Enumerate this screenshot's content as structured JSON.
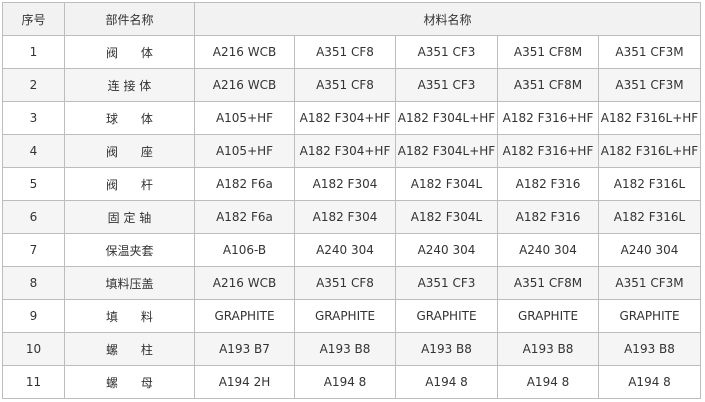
{
  "headers": {
    "no": "序号",
    "part": "部件名称",
    "material": "材料名称"
  },
  "rows": [
    {
      "no": "1",
      "part": "阀      体",
      "m": [
        "A216 WCB",
        "A351 CF8",
        "A351 CF3",
        "A351 CF8M",
        "A351 CF3M"
      ]
    },
    {
      "no": "2",
      "part": "连 接 体",
      "m": [
        "A216 WCB",
        "A351 CF8",
        "A351 CF3",
        "A351 CF8M",
        "A351 CF3M"
      ]
    },
    {
      "no": "3",
      "part": "球      体",
      "m": [
        "A105+HF",
        "A182 F304+HF",
        "A182 F304L+HF",
        "A182 F316+HF",
        "A182 F316L+HF"
      ]
    },
    {
      "no": "4",
      "part": "阀      座",
      "m": [
        "A105+HF",
        "A182 F304+HF",
        "A182 F304L+HF",
        "A182 F316+HF",
        "A182 F316L+HF"
      ]
    },
    {
      "no": "5",
      "part": "阀      杆",
      "m": [
        "A182 F6a",
        "A182 F304",
        "A182 F304L",
        "A182 F316",
        "A182 F316L"
      ]
    },
    {
      "no": "6",
      "part": "固 定 轴",
      "m": [
        "A182 F6a",
        "A182 F304",
        "A182 F304L",
        "A182 F316",
        "A182 F316L"
      ]
    },
    {
      "no": "7",
      "part": "保温夹套",
      "m": [
        "A106-B",
        "A240 304",
        "A240 304",
        "A240 304",
        "A240 304"
      ]
    },
    {
      "no": "8",
      "part": "填料压盖",
      "m": [
        "A216 WCB",
        "A351 CF8",
        "A351 CF3",
        "A351 CF8M",
        "A351 CF3M"
      ]
    },
    {
      "no": "9",
      "part": "填      料",
      "m": [
        "GRAPHITE",
        "GRAPHITE",
        "GRAPHITE",
        "GRAPHITE",
        "GRAPHITE"
      ]
    },
    {
      "no": "10",
      "part": "螺      柱",
      "m": [
        "A193 B7",
        "A193 B8",
        "A193 B8",
        "A193 B8",
        "A193 B8"
      ]
    },
    {
      "no": "11",
      "part": "螺      母",
      "m": [
        "A194 2H",
        "A194 8",
        "A194 8",
        "A194 8",
        "A194 8"
      ]
    }
  ]
}
